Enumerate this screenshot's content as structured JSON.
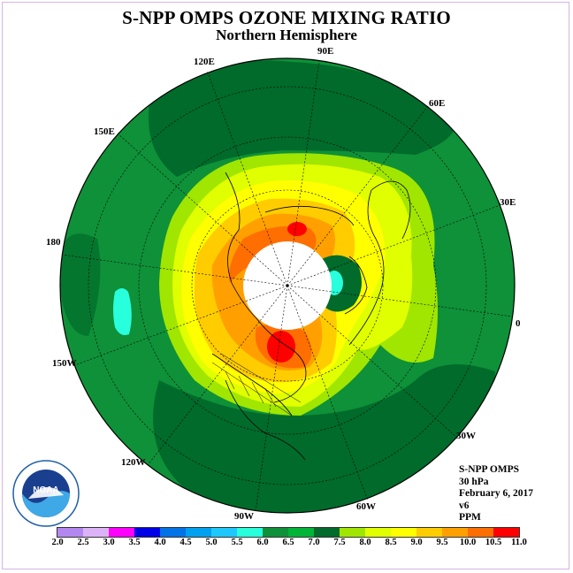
{
  "title": "S-NPP OMPS OZONE MIXING RATIO",
  "subtitle": "Northern Hemisphere",
  "longitude_labels": {
    "e90": "90E",
    "e60": "60E",
    "e30": "30E",
    "e0": "0",
    "w30": "30W",
    "w60": "60W",
    "w90": "90W",
    "w120": "120W",
    "w150": "150W",
    "l180": "180",
    "e150": "150E",
    "e120": "120E"
  },
  "info": {
    "instrument": "S-NPP OMPS",
    "level": "30 hPa",
    "date": "February 6, 2017",
    "version": "v6",
    "units": "PPM"
  },
  "logo_text": "NOAA",
  "colorbar": {
    "ticks": [
      "2.0",
      "2.5",
      "3.0",
      "3.5",
      "4.0",
      "4.5",
      "5.0",
      "5.5",
      "6.0",
      "6.5",
      "7.0",
      "7.5",
      "8.0",
      "8.5",
      "9.0",
      "9.5",
      "10.0",
      "10.5",
      "11.0"
    ],
    "colors": [
      "#b387f0",
      "#ddb3f7",
      "#ff00ff",
      "#0000e6",
      "#0073e6",
      "#00a0f0",
      "#1ec8ff",
      "#28ffdc",
      "#0e9138",
      "#00b437",
      "#006b2b",
      "#a0e600",
      "#e0ff00",
      "#ffff00",
      "#ffcc00",
      "#ffa000",
      "#ff6e00",
      "#ff0000",
      "#8b4513"
    ]
  },
  "map_colors": {
    "dark_green": "#006b2b",
    "green": "#0e9138",
    "light_green": "#a0e600",
    "yellow_green": "#e0ff00",
    "yellow": "#ffff00",
    "gold": "#ffcc00",
    "orange": "#ffa000",
    "dark_orange": "#ff6e00",
    "red": "#ff0000",
    "cyan": "#28ffdc"
  }
}
